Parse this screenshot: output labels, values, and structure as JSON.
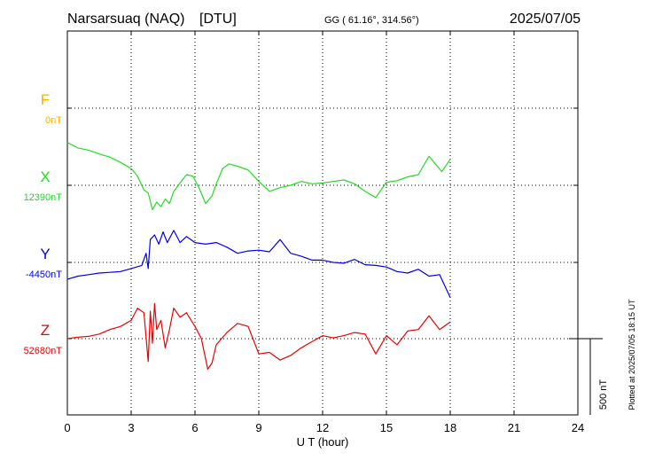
{
  "header": {
    "station": "Narsarsuaq (NAQ)",
    "institution": "[DTU]",
    "coords": "GG ( 61.16°, 314.56°)",
    "date": "2025/07/05"
  },
  "footer": {
    "plotted_note": "Plotted at 2025/07/05 18:15 UT"
  },
  "colors": {
    "F": "#ffb000",
    "X": "#22dd22",
    "Y": "#0000ee",
    "Z": "#ee0000",
    "axis": "#000000",
    "grid": "#000000"
  },
  "chart_data": {
    "type": "line",
    "xlabel": "U T (hour)",
    "xlim": [
      0,
      24
    ],
    "xticks": [
      "0",
      "3",
      "6",
      "9",
      "12",
      "15",
      "18",
      "21",
      "24"
    ],
    "grid": true,
    "scale_bar_label": "500 nT",
    "scale_bar_nT": 500,
    "series": [
      {
        "name": "F",
        "baseline_label": "0nT",
        "baseline_nT": 0,
        "x": [],
        "y": []
      },
      {
        "name": "X",
        "baseline_label": "12390nT",
        "baseline_nT": 12390,
        "x": [
          0,
          0.5,
          1,
          1.5,
          2,
          2.5,
          3,
          3.3,
          3.6,
          3.8,
          4.0,
          4.2,
          4.4,
          4.6,
          4.8,
          5.0,
          5.3,
          5.6,
          5.9,
          6.2,
          6.5,
          6.8,
          7.0,
          7.3,
          7.6,
          8.0,
          8.5,
          9.0,
          9.5,
          10.0,
          10.5,
          11.0,
          11.5,
          12.0,
          12.5,
          13.0,
          13.5,
          14.0,
          14.5,
          14.8,
          15.0,
          15.5,
          16.0,
          16.5,
          17.0,
          17.3,
          17.6,
          18.0
        ],
        "y": [
          280,
          245,
          230,
          205,
          185,
          150,
          110,
          60,
          -30,
          -50,
          -160,
          -110,
          -140,
          -90,
          -120,
          -40,
          15,
          70,
          60,
          -20,
          -120,
          -70,
          10,
          110,
          140,
          125,
          100,
          25,
          -40,
          -15,
          0,
          25,
          10,
          15,
          25,
          35,
          10,
          -40,
          -80,
          -20,
          20,
          30,
          55,
          70,
          190,
          140,
          90,
          170
        ]
      },
      {
        "name": "Y",
        "baseline_label": "-4450nT",
        "baseline_nT": -4450,
        "x": [
          0,
          0.5,
          1,
          1.5,
          2,
          2.5,
          3,
          3.5,
          3.7,
          3.8,
          3.9,
          4.1,
          4.3,
          4.5,
          4.7,
          5.0,
          5.3,
          5.6,
          6.0,
          6.5,
          7.0,
          7.5,
          8.0,
          8.5,
          9.0,
          9.5,
          10.0,
          10.5,
          11.0,
          11.5,
          12.0,
          12.5,
          13.0,
          13.5,
          14.0,
          14.5,
          15.0,
          15.5,
          16.0,
          16.5,
          17.0,
          17.5,
          18.0
        ],
        "y": [
          -110,
          -90,
          -80,
          -70,
          -65,
          -60,
          -40,
          -20,
          60,
          -40,
          150,
          180,
          120,
          200,
          130,
          210,
          130,
          170,
          130,
          120,
          130,
          100,
          60,
          75,
          80,
          70,
          150,
          60,
          40,
          15,
          15,
          0,
          -5,
          20,
          -15,
          -20,
          -30,
          -60,
          -70,
          -45,
          -90,
          -80,
          -230
        ]
      },
      {
        "name": "Z",
        "baseline_label": "52680nT",
        "baseline_nT": 52680,
        "x": [
          0,
          0.5,
          1,
          1.5,
          2,
          2.5,
          3,
          3.3,
          3.6,
          3.8,
          3.9,
          4.0,
          4.1,
          4.2,
          4.4,
          4.6,
          4.8,
          5.0,
          5.3,
          5.6,
          6.0,
          6.3,
          6.6,
          6.8,
          7.0,
          7.5,
          8.0,
          8.5,
          9.0,
          9.5,
          10.0,
          10.5,
          11.0,
          11.5,
          12.0,
          12.5,
          13.0,
          13.5,
          14.0,
          14.5,
          15.0,
          15.5,
          16.0,
          16.5,
          17.0,
          17.5,
          18.0
        ],
        "y": [
          0,
          10,
          15,
          30,
          60,
          80,
          120,
          200,
          170,
          -150,
          180,
          -30,
          230,
          60,
          120,
          -60,
          60,
          200,
          140,
          170,
          80,
          0,
          -200,
          -160,
          -40,
          40,
          100,
          80,
          -100,
          -90,
          -140,
          -110,
          -60,
          -20,
          20,
          5,
          20,
          40,
          30,
          -100,
          20,
          -40,
          50,
          60,
          150,
          60,
          110
        ]
      }
    ]
  }
}
